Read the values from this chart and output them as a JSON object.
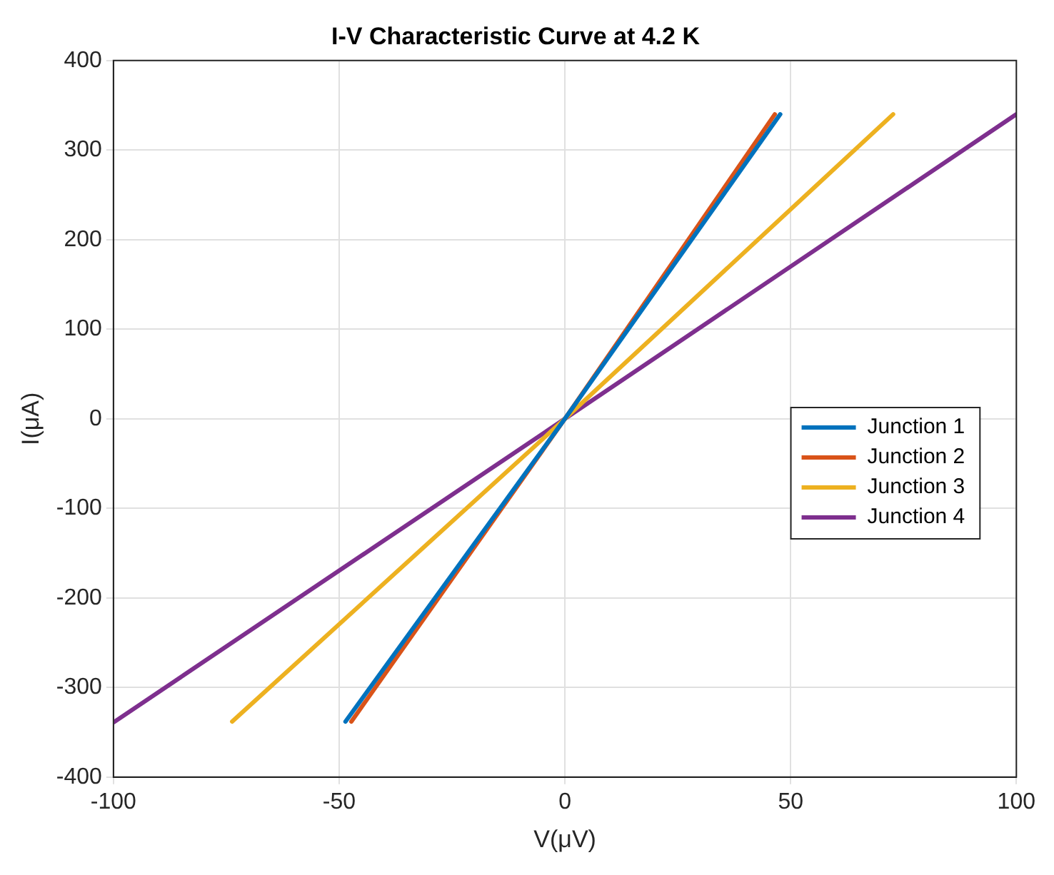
{
  "chart_data": {
    "type": "line",
    "title": "I-V Characteristic Curve at 4.2 K",
    "xlabel": "V(μV)",
    "ylabel": "I(μA)",
    "xlim": [
      -100,
      100
    ],
    "xticks": [
      -100,
      -50,
      0,
      50,
      100
    ],
    "ylim": [
      -400,
      400
    ],
    "yticks": [
      -400,
      -300,
      -200,
      -100,
      0,
      100,
      200,
      300,
      400
    ],
    "grid": true,
    "legend": "right",
    "marker": "none",
    "line_style": "solid",
    "series": [
      {
        "name": "Junction 1",
        "color": "#0072bd",
        "x": [
          -48.6,
          0,
          47.7
        ],
        "values": [
          -338,
          0,
          340
        ]
      },
      {
        "name": "Junction 2",
        "color": "#d95319",
        "x": [
          -47.3,
          0,
          46.5
        ],
        "values": [
          -338,
          0,
          340
        ]
      },
      {
        "name": "Junction 3",
        "color": "#edb120",
        "x": [
          -73.7,
          0,
          72.7
        ],
        "values": [
          -338,
          0,
          340
        ]
      },
      {
        "name": "Junction 4",
        "color": "#7e2f8e",
        "x": [
          -100,
          0,
          100
        ],
        "values": [
          -339,
          0,
          340
        ]
      }
    ]
  }
}
